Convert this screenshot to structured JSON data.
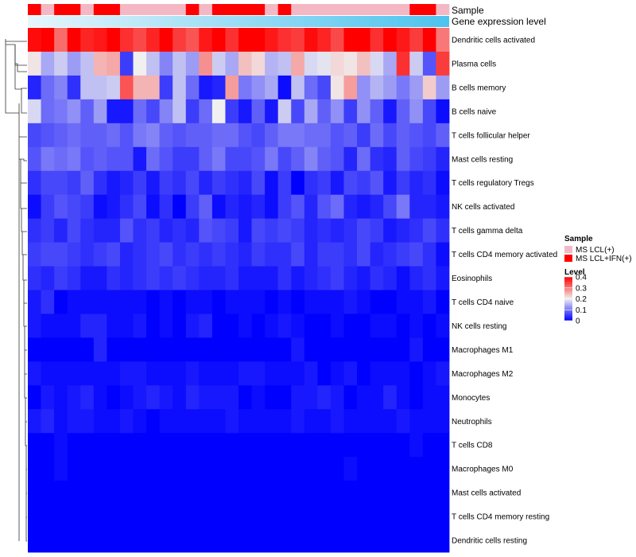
{
  "chart_data": {
    "type": "heatmap",
    "title": "",
    "annotations": {
      "sample_label": "Sample",
      "expression_label": "Gene expression level",
      "sample_groups": [
        1,
        0,
        1,
        1,
        0,
        1,
        1,
        0,
        0,
        0,
        0,
        0,
        1,
        0,
        1,
        1,
        1,
        1,
        0,
        1,
        0,
        0,
        0,
        0,
        0,
        0,
        0,
        0,
        0,
        1,
        1,
        0
      ],
      "expression_gradient": [
        "#e6f6fc",
        "#4cc3ee"
      ]
    },
    "rows": [
      "Dendritic cells activated",
      "Plasma cells",
      "B cells memory",
      "B cells naive",
      "T cells follicular helper",
      "Mast cells resting",
      "T cells regulatory  Tregs",
      "NK cells activated",
      "T cells gamma delta",
      "T cells CD4 memory activated",
      "Eosinophils",
      "T cells CD4 naive",
      "NK cells resting",
      "Macrophages M1",
      "Macrophages M2",
      "Monocytes",
      "Neutrophils",
      "T cells CD8",
      "Macrophages M0",
      "Mast cells activated",
      "T cells CD4 memory resting",
      "Dendritic cells resting"
    ],
    "n_columns": 32,
    "values": [
      [
        0.39,
        0.43,
        0.31,
        0.4,
        0.37,
        0.38,
        0.41,
        0.36,
        0.34,
        0.37,
        0.4,
        0.35,
        0.33,
        0.38,
        0.42,
        0.36,
        0.4,
        0.43,
        0.38,
        0.36,
        0.35,
        0.39,
        0.37,
        0.34,
        0.42,
        0.4,
        0.36,
        0.43,
        0.38,
        0.35,
        0.44,
        0.3
      ],
      [
        0.21,
        0.14,
        0.17,
        0.13,
        0.16,
        0.25,
        0.26,
        0.05,
        0.2,
        0.16,
        0.11,
        0.16,
        0.13,
        0.28,
        0.17,
        0.14,
        0.24,
        0.22,
        0.15,
        0.16,
        0.26,
        0.18,
        0.19,
        0.22,
        0.21,
        0.24,
        0.18,
        0.14,
        0.36,
        0.17,
        0.07,
        0.35
      ],
      [
        0.03,
        0.09,
        0.11,
        0.04,
        0.16,
        0.16,
        0.17,
        0.33,
        0.25,
        0.25,
        0.05,
        0.16,
        0.09,
        0.02,
        0.03,
        0.27,
        0.1,
        0.12,
        0.14,
        0.01,
        0.16,
        0.09,
        0.06,
        0.21,
        0.27,
        0.12,
        0.15,
        0.13,
        0.1,
        0.13,
        0.23,
        0.13
      ],
      [
        0.18,
        0.09,
        0.1,
        0.12,
        0.08,
        0.13,
        0.02,
        0.02,
        0.09,
        0.06,
        0.11,
        0.16,
        0.05,
        0.09,
        0.2,
        0.05,
        0.02,
        0.08,
        0.02,
        0.17,
        0.06,
        0.14,
        0.08,
        0.12,
        0.05,
        0.12,
        0.08,
        0.02,
        0.08,
        0.12,
        0.06,
        0.01
      ],
      [
        0.06,
        0.07,
        0.08,
        0.09,
        0.08,
        0.08,
        0.09,
        0.07,
        0.1,
        0.11,
        0.08,
        0.07,
        0.08,
        0.08,
        0.09,
        0.09,
        0.07,
        0.06,
        0.08,
        0.1,
        0.1,
        0.09,
        0.09,
        0.07,
        0.08,
        0.05,
        0.09,
        0.06,
        0.08,
        0.07,
        0.06,
        0.08
      ],
      [
        0.07,
        0.1,
        0.09,
        0.1,
        0.07,
        0.08,
        0.07,
        0.07,
        0.02,
        0.09,
        0.07,
        0.05,
        0.05,
        0.08,
        0.1,
        0.06,
        0.06,
        0.07,
        0.1,
        0.06,
        0.08,
        0.11,
        0.08,
        0.07,
        0.03,
        0.09,
        0.04,
        0.03,
        0.08,
        0.06,
        0.05,
        0.03
      ],
      [
        0.04,
        0.06,
        0.06,
        0.05,
        0.08,
        0.04,
        0.02,
        0.03,
        0.05,
        0.02,
        0.05,
        0.04,
        0.06,
        0.03,
        0.05,
        0.04,
        0.03,
        0.06,
        0.01,
        0.05,
        0.0,
        0.04,
        0.05,
        0.02,
        0.06,
        0.05,
        0.07,
        0.02,
        0.05,
        0.03,
        0.04,
        0.01
      ],
      [
        0.01,
        0.05,
        0.07,
        0.06,
        0.05,
        0.01,
        0.02,
        0.04,
        0.06,
        0.01,
        0.04,
        0.0,
        0.05,
        0.08,
        0.01,
        0.03,
        0.02,
        0.03,
        0.01,
        0.05,
        0.07,
        0.03,
        0.07,
        0.09,
        0.03,
        0.02,
        0.03,
        0.06,
        0.1,
        0.03,
        0.03,
        0.02
      ],
      [
        0.04,
        0.05,
        0.03,
        0.06,
        0.04,
        0.03,
        0.03,
        0.07,
        0.04,
        0.05,
        0.03,
        0.04,
        0.03,
        0.07,
        0.06,
        0.05,
        0.02,
        0.06,
        0.05,
        0.06,
        0.05,
        0.03,
        0.04,
        0.03,
        0.04,
        0.06,
        0.05,
        0.02,
        0.03,
        0.04,
        0.06,
        0.04
      ],
      [
        0.05,
        0.06,
        0.06,
        0.05,
        0.04,
        0.05,
        0.06,
        0.03,
        0.04,
        0.05,
        0.06,
        0.04,
        0.05,
        0.04,
        0.05,
        0.04,
        0.03,
        0.05,
        0.04,
        0.04,
        0.06,
        0.03,
        0.05,
        0.05,
        0.04,
        0.06,
        0.03,
        0.04,
        0.05,
        0.06,
        0.04,
        0.01
      ],
      [
        0.04,
        0.03,
        0.05,
        0.04,
        0.02,
        0.02,
        0.04,
        0.03,
        0.04,
        0.05,
        0.04,
        0.05,
        0.04,
        0.03,
        0.03,
        0.04,
        0.02,
        0.02,
        0.02,
        0.04,
        0.02,
        0.03,
        0.04,
        0.05,
        0.03,
        0.02,
        0.04,
        0.03,
        0.01,
        0.03,
        0.04,
        0.02
      ],
      [
        0.02,
        0.04,
        0.0,
        0.01,
        0.01,
        0.01,
        0.01,
        0.01,
        0.01,
        0.0,
        0.01,
        0.0,
        0.01,
        0.01,
        0.0,
        0.01,
        0.01,
        0.01,
        0.0,
        0.01,
        0.0,
        0.01,
        0.01,
        0.01,
        0.02,
        0.01,
        0.0,
        0.0,
        0.01,
        0.01,
        0.02,
        0.0
      ],
      [
        0.02,
        0.01,
        0.01,
        0.01,
        0.03,
        0.03,
        0.01,
        0.01,
        0.02,
        0.0,
        0.01,
        0.0,
        0.02,
        0.03,
        0.0,
        0.0,
        0.01,
        0.0,
        0.01,
        0.02,
        0.01,
        0.0,
        0.0,
        0.01,
        0.0,
        0.0,
        0.01,
        0.01,
        0.0,
        0.01,
        0.0,
        0.01
      ],
      [
        0.0,
        0.0,
        0.0,
        0.0,
        0.0,
        0.03,
        0.0,
        0.0,
        0.0,
        0.0,
        0.0,
        0.0,
        0.0,
        0.0,
        0.0,
        0.0,
        0.0,
        0.0,
        0.0,
        0.0,
        0.02,
        0.0,
        0.0,
        0.0,
        0.0,
        0.0,
        0.0,
        0.0,
        0.0,
        0.02,
        0.0,
        0.0
      ],
      [
        0.02,
        0.01,
        0.01,
        0.01,
        0.01,
        0.01,
        0.01,
        0.02,
        0.02,
        0.01,
        0.01,
        0.01,
        0.02,
        0.01,
        0.01,
        0.01,
        0.02,
        0.02,
        0.01,
        0.01,
        0.01,
        0.02,
        0.0,
        0.01,
        0.02,
        0.0,
        0.01,
        0.01,
        0.01,
        0.0,
        0.01,
        0.02
      ],
      [
        0.0,
        0.02,
        0.01,
        0.02,
        0.03,
        0.01,
        0.0,
        0.01,
        0.02,
        0.03,
        0.02,
        0.01,
        0.03,
        0.02,
        0.02,
        0.02,
        0.0,
        0.01,
        0.0,
        0.0,
        0.02,
        0.02,
        0.03,
        0.02,
        0.0,
        0.01,
        0.01,
        0.03,
        0.01,
        0.0,
        0.01,
        0.01
      ],
      [
        0.02,
        0.03,
        0.01,
        0.02,
        0.02,
        0.01,
        0.01,
        0.02,
        0.01,
        0.0,
        0.01,
        0.01,
        0.01,
        0.01,
        0.01,
        0.02,
        0.01,
        0.01,
        0.01,
        0.01,
        0.02,
        0.01,
        0.01,
        0.02,
        0.01,
        0.01,
        0.01,
        0.01,
        0.02,
        0.01,
        0.01,
        0.01
      ],
      [
        0.0,
        0.0,
        0.01,
        0.0,
        0.0,
        0.0,
        0.0,
        0.0,
        0.0,
        0.0,
        0.0,
        0.0,
        0.0,
        0.0,
        0.0,
        0.0,
        0.0,
        0.0,
        0.0,
        0.0,
        0.0,
        0.0,
        0.0,
        0.0,
        0.0,
        0.0,
        0.0,
        0.0,
        0.0,
        0.01,
        0.0,
        0.0
      ],
      [
        0.0,
        0.0,
        0.01,
        0.0,
        0.0,
        0.0,
        0.0,
        0.0,
        0.0,
        0.0,
        0.0,
        0.0,
        0.0,
        0.0,
        0.0,
        0.0,
        0.0,
        0.0,
        0.0,
        0.0,
        0.0,
        0.0,
        0.0,
        0.0,
        0.01,
        0.0,
        0.0,
        0.0,
        0.0,
        0.0,
        0.0,
        0.0
      ],
      [
        0.0,
        0.0,
        0.0,
        0.0,
        0.0,
        0.0,
        0.0,
        0.0,
        0.0,
        0.0,
        0.0,
        0.0,
        0.0,
        0.0,
        0.0,
        0.0,
        0.0,
        0.0,
        0.0,
        0.0,
        0.0,
        0.0,
        0.0,
        0.0,
        0.0,
        0.0,
        0.0,
        0.0,
        0.0,
        0.0,
        0.0,
        0.0
      ],
      [
        0.0,
        0.0,
        0.0,
        0.0,
        0.0,
        0.0,
        0.0,
        0.0,
        0.0,
        0.0,
        0.0,
        0.0,
        0.0,
        0.0,
        0.0,
        0.0,
        0.0,
        0.0,
        0.0,
        0.0,
        0.0,
        0.0,
        0.0,
        0.0,
        0.0,
        0.0,
        0.0,
        0.0,
        0.0,
        0.0,
        0.0,
        0.0
      ],
      [
        0.0,
        0.0,
        0.0,
        0.0,
        0.0,
        0.0,
        0.0,
        0.0,
        0.0,
        0.0,
        0.0,
        0.0,
        0.0,
        0.0,
        0.0,
        0.0,
        0.0,
        0.0,
        0.0,
        0.0,
        0.0,
        0.0,
        0.0,
        0.0,
        0.0,
        0.0,
        0.0,
        0.0,
        0.0,
        0.0,
        0.0,
        0.0
      ]
    ],
    "color_scale": {
      "stops": [
        0,
        0.2,
        0.4
      ],
      "colors": [
        "#0000ff",
        "#f0f0f0",
        "#ff0000"
      ]
    },
    "legend": {
      "sample_title": "Sample",
      "sample_entries": [
        {
          "label": "MS LCL(+)",
          "color": "#f4b8c4"
        },
        {
          "label": "MS LCL+IFN(+)",
          "color": "#ff0000"
        }
      ],
      "level_title": "Level",
      "level_ticks": [
        "0.4",
        "0.3",
        "0.2",
        "0.1",
        "0"
      ],
      "level_tick_values": [
        0.4,
        0.3,
        0.2,
        0.1,
        0
      ]
    }
  }
}
